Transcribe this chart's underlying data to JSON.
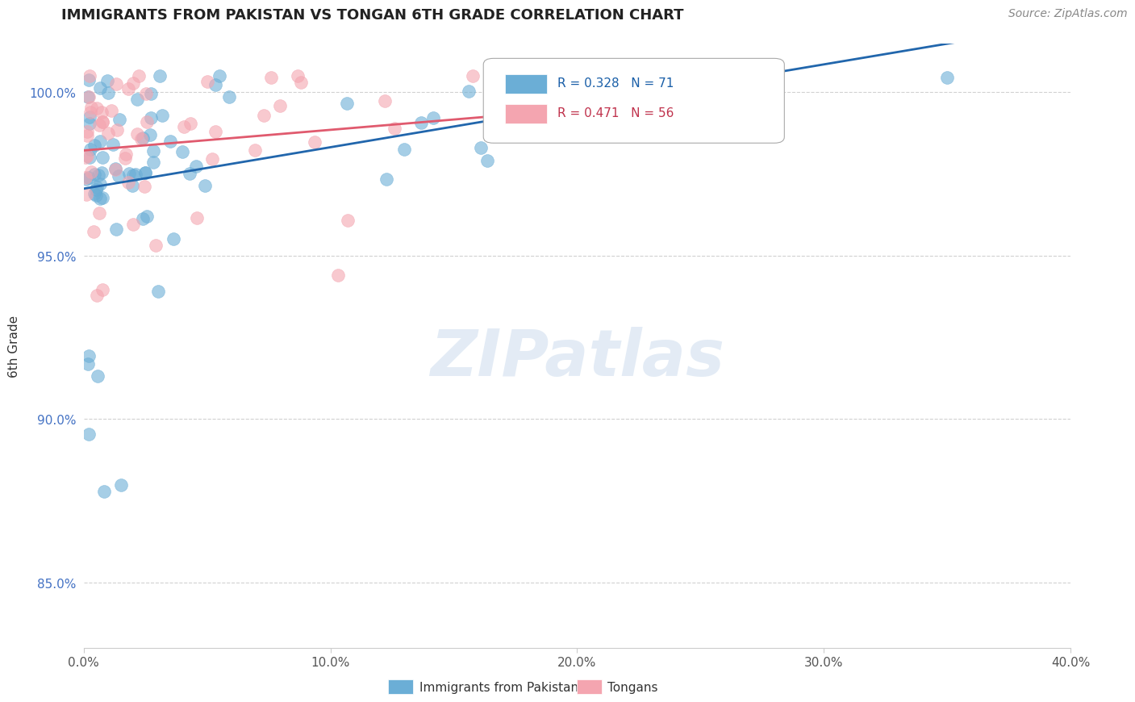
{
  "title": "IMMIGRANTS FROM PAKISTAN VS TONGAN 6TH GRADE CORRELATION CHART",
  "source": "Source: ZipAtlas.com",
  "ylabel_label": "6th Grade",
  "legend_label_blue": "Immigrants from Pakistan",
  "legend_label_pink": "Tongans",
  "R_blue": 0.328,
  "N_blue": 71,
  "R_pink": 0.471,
  "N_pink": 56,
  "xlim": [
    0.0,
    40.0
  ],
  "ylim": [
    83.0,
    101.5
  ],
  "yticks": [
    85.0,
    90.0,
    95.0,
    100.0
  ],
  "xticks": [
    0.0,
    10.0,
    20.0,
    30.0,
    40.0
  ],
  "blue_color": "#6baed6",
  "pink_color": "#f4a5b0",
  "blue_line_color": "#2166ac",
  "pink_line_color": "#e05a6e",
  "background_color": "#ffffff",
  "watermark_text": "ZIPatlas"
}
